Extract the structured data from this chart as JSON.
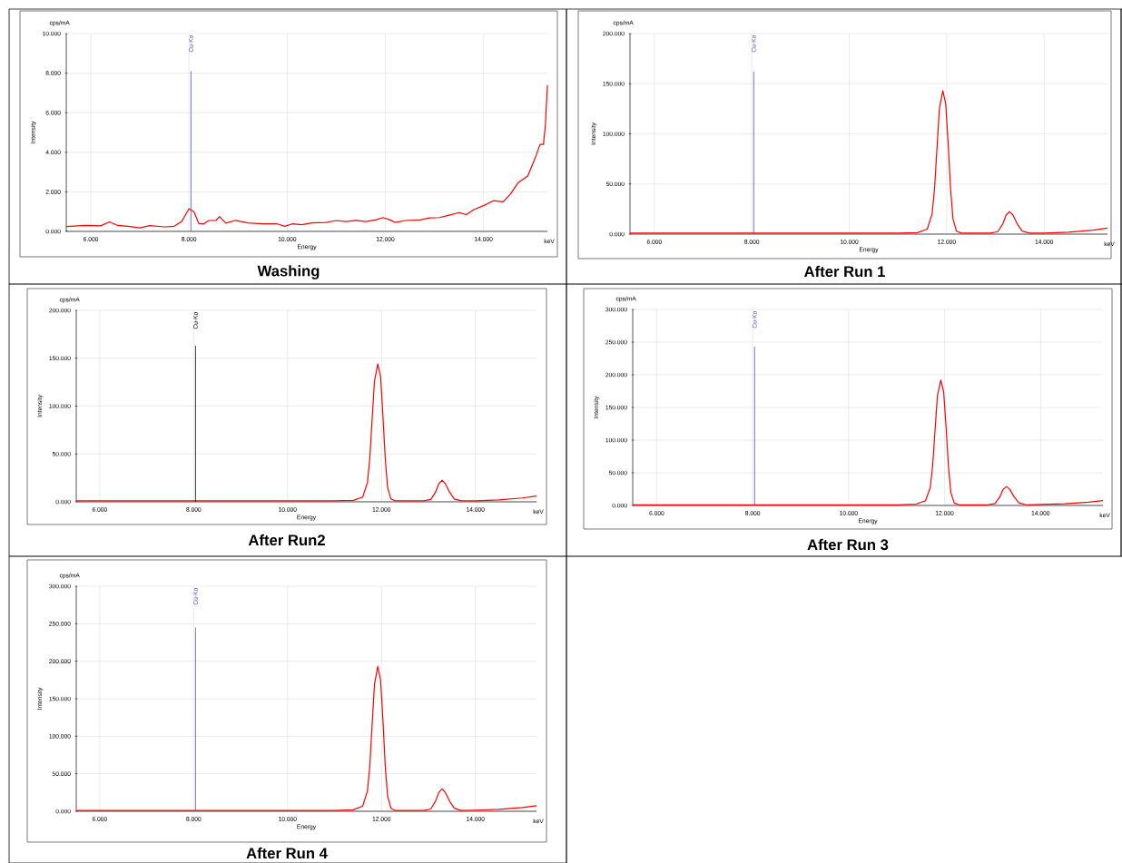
{
  "chart_data": [
    {
      "type": "line",
      "title": "Washing",
      "xlabel": "Energy",
      "ylabel": "Intensity",
      "annotations": [
        "cps/mA",
        "keV"
      ],
      "grid": true,
      "xlim": [
        5.5,
        15.3
      ],
      "xticks": [
        {
          "value": 6,
          "label": "6.000"
        },
        {
          "value": 8,
          "label": "8.000"
        },
        {
          "value": 10,
          "label": "10.000"
        },
        {
          "value": 12,
          "label": "12.000"
        },
        {
          "value": 14,
          "label": "14.000"
        }
      ],
      "ylim": [
        0,
        10
      ],
      "yticks": [
        {
          "value": 0,
          "label": "0.000"
        },
        {
          "value": 2,
          "label": "2.000"
        },
        {
          "value": 4,
          "label": "4.000"
        },
        {
          "value": 6,
          "label": "6.000"
        },
        {
          "value": 8,
          "label": "8.000"
        },
        {
          "value": 10,
          "label": "10.000"
        }
      ],
      "series": [
        {
          "color": "#ff0000",
          "x": [
            5.5,
            5.9,
            6.2,
            6.38,
            6.55,
            6.8,
            7.0,
            7.2,
            7.5,
            7.7,
            7.85,
            8.0,
            8.1,
            8.2,
            8.3,
            8.4,
            8.55,
            8.62,
            8.75,
            8.95,
            9.2,
            9.5,
            9.8,
            9.95,
            10.1,
            10.3,
            10.5,
            10.8,
            11.0,
            11.2,
            11.4,
            11.6,
            11.8,
            11.95,
            12.1,
            12.2,
            12.4,
            12.7,
            12.9,
            13.1,
            13.3,
            13.5,
            13.65,
            13.8,
            14.0,
            14.2,
            14.4,
            14.55,
            14.7,
            14.9,
            15.05,
            15.15,
            15.22,
            15.26,
            15.3
          ],
          "values": [
            0.25,
            0.3,
            0.28,
            0.48,
            0.3,
            0.25,
            0.18,
            0.29,
            0.23,
            0.26,
            0.5,
            1.15,
            1.0,
            0.4,
            0.38,
            0.55,
            0.55,
            0.75,
            0.42,
            0.56,
            0.43,
            0.38,
            0.38,
            0.26,
            0.38,
            0.34,
            0.43,
            0.45,
            0.55,
            0.5,
            0.56,
            0.5,
            0.58,
            0.7,
            0.58,
            0.45,
            0.55,
            0.58,
            0.68,
            0.7,
            0.82,
            0.95,
            0.85,
            1.1,
            1.3,
            1.55,
            1.5,
            1.9,
            2.45,
            2.8,
            3.7,
            4.4,
            4.4,
            5.4,
            7.4
          ]
        },
        {
          "name": "Cu-Kα",
          "color": "#5050b4",
          "x": [
            8.04,
            8.04
          ],
          "values": [
            0,
            8.1
          ]
        }
      ]
    },
    {
      "type": "line",
      "title": "After Run 1",
      "xlabel": "Energy",
      "ylabel": "Intensity",
      "annotations": [
        "cps/mA",
        "keV"
      ],
      "grid": true,
      "xlim": [
        5.5,
        15.3
      ],
      "xticks": [
        {
          "value": 6,
          "label": "6.000"
        },
        {
          "value": 8,
          "label": "8.000"
        },
        {
          "value": 10,
          "label": "10.000"
        },
        {
          "value": 12,
          "label": "12.000"
        },
        {
          "value": 14,
          "label": "14.000"
        }
      ],
      "ylim": [
        0,
        200
      ],
      "yticks": [
        {
          "value": 0,
          "label": "0.000"
        },
        {
          "value": 50,
          "label": "50.000"
        },
        {
          "value": 100,
          "label": "100.000"
        },
        {
          "value": 150,
          "label": "150.000"
        },
        {
          "value": 200,
          "label": "200.000"
        }
      ],
      "series": [
        {
          "color": "#ff0000",
          "x": [
            5.5,
            6.5,
            7.5,
            7.9,
            8.0,
            8.1,
            8.5,
            9.5,
            10.5,
            11.0,
            11.4,
            11.6,
            11.7,
            11.75,
            11.8,
            11.85,
            11.92,
            11.98,
            12.03,
            12.08,
            12.13,
            12.2,
            12.3,
            12.9,
            13.05,
            13.15,
            13.22,
            13.29,
            13.36,
            13.45,
            13.55,
            13.7,
            14.0,
            14.5,
            15.0,
            15.3
          ],
          "values": [
            1,
            1,
            1,
            1,
            1,
            1,
            1,
            1,
            1,
            1,
            1.5,
            5,
            20,
            45,
            85,
            125,
            143,
            130,
            90,
            45,
            15,
            3,
            1,
            1,
            2.5,
            10,
            19,
            22.5,
            19,
            10,
            3,
            1,
            1,
            2,
            4,
            6
          ]
        },
        {
          "name": "Cu-Kα",
          "color": "#5050b4",
          "x": [
            8.04,
            8.04
          ],
          "values": [
            0,
            162
          ]
        }
      ]
    },
    {
      "type": "line",
      "title": "After Run2",
      "xlabel": "Energy",
      "ylabel": "Intensity",
      "annotations": [
        "cps/mA",
        "keV"
      ],
      "grid": true,
      "xlim": [
        5.5,
        15.3
      ],
      "xticks": [
        {
          "value": 6,
          "label": "6.000"
        },
        {
          "value": 8,
          "label": "8.000"
        },
        {
          "value": 10,
          "label": "10.000"
        },
        {
          "value": 12,
          "label": "12.000"
        },
        {
          "value": 14,
          "label": "14.000"
        }
      ],
      "ylim": [
        0,
        200
      ],
      "yticks": [
        {
          "value": 0,
          "label": "0.000"
        },
        {
          "value": 50,
          "label": "50.000"
        },
        {
          "value": 100,
          "label": "100.000"
        },
        {
          "value": 150,
          "label": "150.000"
        },
        {
          "value": 200,
          "label": "200.000"
        }
      ],
      "series": [
        {
          "color": "#ff0000",
          "x": [
            5.5,
            6.5,
            7.5,
            7.9,
            8.0,
            8.1,
            8.5,
            9.5,
            10.5,
            11.0,
            11.4,
            11.6,
            11.7,
            11.75,
            11.8,
            11.85,
            11.92,
            11.98,
            12.03,
            12.08,
            12.13,
            12.2,
            12.3,
            12.9,
            13.05,
            13.15,
            13.22,
            13.29,
            13.36,
            13.45,
            13.55,
            13.7,
            14.0,
            14.5,
            15.0,
            15.3
          ],
          "values": [
            1,
            1,
            1,
            1,
            1,
            1,
            1,
            1,
            1,
            1,
            1.5,
            5,
            20,
            45,
            86,
            126,
            144,
            131,
            90,
            45,
            15,
            3,
            1,
            1,
            2.5,
            10,
            19,
            22.5,
            19,
            10,
            3,
            1,
            1,
            2,
            4,
            6
          ]
        },
        {
          "name": "Cu-Kα",
          "color": "#000000",
          "x": [
            8.04,
            8.04
          ],
          "values": [
            0,
            163
          ]
        }
      ]
    },
    {
      "type": "line",
      "title": "After Run 3",
      "xlabel": "Energy",
      "ylabel": "Intensity",
      "annotations": [
        "cps/mA",
        "keV"
      ],
      "grid": true,
      "xlim": [
        5.5,
        15.3
      ],
      "xticks": [
        {
          "value": 6,
          "label": "6.000"
        },
        {
          "value": 8,
          "label": "8.000"
        },
        {
          "value": 10,
          "label": "10.000"
        },
        {
          "value": 12,
          "label": "12.000"
        },
        {
          "value": 14,
          "label": "14.000"
        }
      ],
      "ylim": [
        0,
        300
      ],
      "yticks": [
        {
          "value": 0,
          "label": "0.000"
        },
        {
          "value": 50,
          "label": "50.000"
        },
        {
          "value": 100,
          "label": "100.000"
        },
        {
          "value": 150,
          "label": "150.000"
        },
        {
          "value": 200,
          "label": "200.000"
        },
        {
          "value": 250,
          "label": "250.000"
        },
        {
          "value": 300,
          "label": "300.000"
        }
      ],
      "series": [
        {
          "color": "#ff0000",
          "x": [
            5.5,
            6.5,
            7.5,
            7.9,
            8.0,
            8.1,
            8.5,
            9.5,
            10.5,
            11.0,
            11.4,
            11.6,
            11.7,
            11.75,
            11.8,
            11.85,
            11.92,
            11.98,
            12.03,
            12.08,
            12.13,
            12.2,
            12.3,
            12.9,
            13.05,
            13.15,
            13.22,
            13.29,
            13.36,
            13.45,
            13.55,
            13.7,
            14.0,
            14.5,
            15.0,
            15.3
          ],
          "values": [
            1,
            1,
            1,
            1,
            1,
            1,
            1,
            1,
            1,
            1,
            2,
            7,
            27,
            60,
            114,
            168,
            192,
            174,
            121,
            60,
            20,
            4,
            1,
            1,
            3,
            13,
            24.5,
            29,
            24.5,
            13,
            4,
            1,
            1.5,
            2.5,
            5,
            7.5
          ]
        },
        {
          "name": "Cu-Kα",
          "color": "#5050b4",
          "x": [
            8.04,
            8.04
          ],
          "values": [
            0,
            243
          ]
        }
      ]
    },
    {
      "type": "line",
      "title": "After Run 4",
      "xlabel": "Energy",
      "ylabel": "Intensity",
      "annotations": [
        "cps/mA",
        "keV"
      ],
      "grid": true,
      "xlim": [
        5.5,
        15.3
      ],
      "xticks": [
        {
          "value": 6,
          "label": "6.000"
        },
        {
          "value": 8,
          "label": "8.000"
        },
        {
          "value": 10,
          "label": "10.000"
        },
        {
          "value": 12,
          "label": "12.000"
        },
        {
          "value": 14,
          "label": "14.000"
        }
      ],
      "ylim": [
        0,
        300
      ],
      "yticks": [
        {
          "value": 0,
          "label": "0.000"
        },
        {
          "value": 50,
          "label": "50.000"
        },
        {
          "value": 100,
          "label": "100.000"
        },
        {
          "value": 150,
          "label": "150.000"
        },
        {
          "value": 200,
          "label": "200.000"
        },
        {
          "value": 250,
          "label": "250.000"
        },
        {
          "value": 300,
          "label": "300.000"
        }
      ],
      "series": [
        {
          "color": "#ff0000",
          "x": [
            5.5,
            6.5,
            7.5,
            7.9,
            8.0,
            8.1,
            8.5,
            9.5,
            10.5,
            11.0,
            11.4,
            11.6,
            11.7,
            11.75,
            11.8,
            11.85,
            11.92,
            11.98,
            12.03,
            12.08,
            12.13,
            12.2,
            12.3,
            12.9,
            13.05,
            13.15,
            13.22,
            13.29,
            13.36,
            13.45,
            13.55,
            13.7,
            14.0,
            14.5,
            15.0,
            15.3
          ],
          "values": [
            1,
            1,
            1,
            1,
            1,
            1,
            1,
            1,
            1,
            1,
            2,
            7,
            27,
            60,
            115,
            169,
            193,
            175,
            122,
            60,
            20,
            4,
            1,
            1,
            3,
            13.5,
            25,
            30,
            25,
            13.5,
            4,
            1,
            1.5,
            2.5,
            5,
            7.5
          ]
        },
        {
          "name": "Cu-Kα",
          "color": "#5050b4",
          "x": [
            8.04,
            8.04
          ],
          "values": [
            0,
            245
          ]
        }
      ]
    }
  ]
}
